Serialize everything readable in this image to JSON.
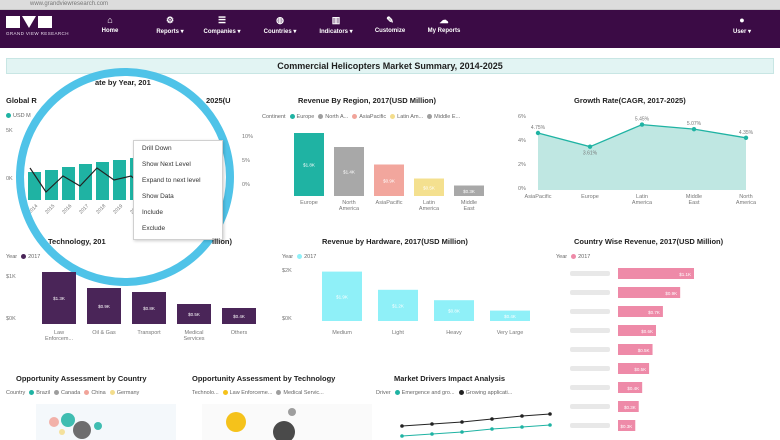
{
  "browser": {
    "url": "www.grandviewresearch.com"
  },
  "brand": {
    "name": "GRAND VIEW RESEARCH"
  },
  "nav": [
    {
      "label": "Home",
      "icon": "home-icon",
      "glyph": "⌂"
    },
    {
      "label": "Reports ▾",
      "icon": "reports-icon",
      "glyph": "⚙"
    },
    {
      "label": "Companies ▾",
      "icon": "companies-icon",
      "glyph": "☰"
    },
    {
      "label": "Countries ▾",
      "icon": "globe-icon",
      "glyph": "◍"
    },
    {
      "label": "Indicators ▾",
      "icon": "indicators-icon",
      "glyph": "▥"
    },
    {
      "label": "Customize",
      "icon": "customize-icon",
      "glyph": "✎"
    },
    {
      "label": "My Reports",
      "icon": "cloud-icon",
      "glyph": "☁"
    },
    {
      "label": "User ▾",
      "icon": "user-icon",
      "glyph": "●"
    }
  ],
  "summary_title": "Commercial Helicopters Market Summary, 2014-2025",
  "context_menu": [
    "Drill Down",
    "Show Next Level",
    "Expand to next level",
    "Show Data",
    "Include",
    "Exclude"
  ],
  "charts": {
    "revenue_by_year": {
      "title_left": "Global R",
      "title_mid": "ate by Year, 201",
      "title_right": "2025(U",
      "legend": "USD M",
      "y_ticks": [
        "5K",
        "0K"
      ],
      "right_ticks": [
        "10%",
        "5%",
        "0%"
      ],
      "x_ticks": [
        "2014",
        "2015",
        "2016",
        "2017",
        "2018",
        "2019",
        "2020"
      ],
      "color": "#1fb3a3"
    },
    "revenue_by_region": {
      "title": "Revenue By Region, 2017(USD Million)",
      "legend_label": "Continent",
      "legend": [
        {
          "name": "Europe",
          "color": "#1fb3a3"
        },
        {
          "name": "North A...",
          "color": "#9e9e9e"
        },
        {
          "name": "AsiaPacific",
          "color": "#f1a49a"
        },
        {
          "name": "Latin Am...",
          "color": "#f3dd8c"
        },
        {
          "name": "Middle E...",
          "color": "#9e9e9e"
        }
      ],
      "categories": [
        "Europe",
        "North America",
        "AsiaPacific",
        "Latin America",
        "Middle East"
      ],
      "values": [
        1.8,
        1.4,
        0.9,
        0.5,
        0.3
      ],
      "bar_labels": [
        "$1.8K",
        "$1.4K",
        "$0.9K",
        "$0.5K",
        "$0.3K"
      ],
      "colors": [
        "#1fb3a3",
        "#a8a8a8",
        "#f2a69d",
        "#f4e08f",
        "#a8a8a8"
      ]
    },
    "growth_rate": {
      "title": "Growth Rate(CAGR, 2017-2025)",
      "categories": [
        "AsiaPacific",
        "Europe",
        "Latin America",
        "Middle East",
        "North America"
      ],
      "values": [
        4.75,
        3.61,
        5.45,
        5.07,
        4.35
      ],
      "labels": [
        "4.75%",
        "3.61%",
        "5.45%",
        "5.07%",
        "4.35%"
      ],
      "ylabels": [
        "6%",
        "4%",
        "2%",
        "0%"
      ],
      "color": "#1fb3a3",
      "fill": "#bfe7e2"
    },
    "by_technology": {
      "title": "Technology, 201",
      "title_tail": "illion)",
      "legend_label": "Year",
      "legend": "2017",
      "y_ticks": [
        "$1K",
        "$0K"
      ],
      "categories": [
        "Law Enforcem...",
        "Oil & Gas",
        "Transport",
        "Medical Services",
        "Others"
      ],
      "values": [
        1.3,
        0.9,
        0.8,
        0.5,
        0.4
      ],
      "bar_labels": [
        "$1.3K",
        "$0.9K",
        "$0.8K",
        "$0.5K",
        "$0.4K"
      ],
      "color": "#4a2558"
    },
    "by_hardware": {
      "title": "Revenue by Hardware, 2017(USD Million)",
      "legend_label": "Year",
      "legend": "2017",
      "y_ticks": [
        "$2K",
        "$0K"
      ],
      "categories": [
        "Medium",
        "Light",
        "Heavy",
        "Very Large"
      ],
      "values": [
        1.9,
        1.2,
        0.8,
        0.4
      ],
      "bar_labels": [
        "$1.9K",
        "$1.2K",
        "$0.8K",
        "$0.4K"
      ],
      "color": "#8ff0f8"
    },
    "country_revenue": {
      "title": "Country Wise Revenue, 2017(USD Million)",
      "legend_label": "Year",
      "legend": "2017",
      "values": [
        1.1,
        0.9,
        0.65,
        0.55,
        0.5,
        0.45,
        0.35,
        0.3,
        0.25
      ],
      "bar_labels": [
        "$1.1K",
        "$0.9K",
        "$0.7K",
        "$0.6K",
        "$0.5K",
        "$0.5K",
        "$0.4K",
        "$0.3K",
        "$0.3K"
      ],
      "color": "#ee8aa8"
    },
    "opp_country": {
      "title": "Opportunity Assessment by Country",
      "legend_label": "Country",
      "legend": [
        {
          "name": "Brazil",
          "color": "#1fb3a3"
        },
        {
          "name": "Canada",
          "color": "#9e9e9e"
        },
        {
          "name": "China",
          "color": "#f1a49a"
        },
        {
          "name": "Germany",
          "color": "#f3dd8c"
        }
      ]
    },
    "opp_technology": {
      "title": "Opportunity Assessment by Technology",
      "legend_label": "Technolo...",
      "legend": [
        {
          "name": "Law Enforceme...",
          "color": "#f5c21b"
        },
        {
          "name": "Medical Servic...",
          "color": "#9e9e9e"
        }
      ]
    },
    "market_drivers": {
      "title": "Market Drivers Impact Analysis",
      "legend_label": "Driver",
      "legend": [
        {
          "name": "Emergence and gro...",
          "color": "#1fb3a3"
        },
        {
          "name": "Growing applicati...",
          "color": "#222222"
        }
      ]
    }
  }
}
